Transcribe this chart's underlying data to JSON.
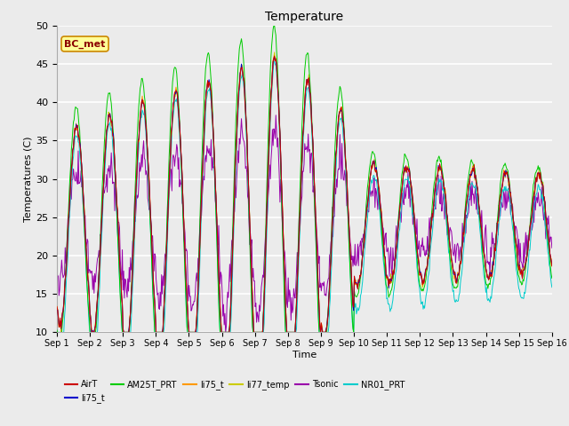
{
  "title": "Temperature",
  "xlabel": "Time",
  "ylabel": "Temperatures (C)",
  "annotation": "BC_met",
  "ylim": [
    10,
    50
  ],
  "xlim_days": 15,
  "xtick_labels": [
    "Sep 1",
    "Sep 2",
    "Sep 3",
    "Sep 4",
    "Sep 5",
    "Sep 6",
    "Sep 7",
    "Sep 8",
    "Sep 9",
    "Sep 10",
    "Sep 11",
    "Sep 12",
    "Sep 13",
    "Sep 14",
    "Sep 15",
    "Sep 16"
  ],
  "legend_labels": [
    "AirT",
    "li75_t",
    "AM25T_PRT",
    "li75_t",
    "li77_temp",
    "Tsonic",
    "NR01_PRT"
  ],
  "legend_colors": [
    "#cc0000",
    "#0000cc",
    "#00cc00",
    "#ff9900",
    "#cccc00",
    "#9900aa",
    "#00cccc"
  ],
  "plot_bg": "#ebebeb",
  "fig_bg": "#ebebeb"
}
